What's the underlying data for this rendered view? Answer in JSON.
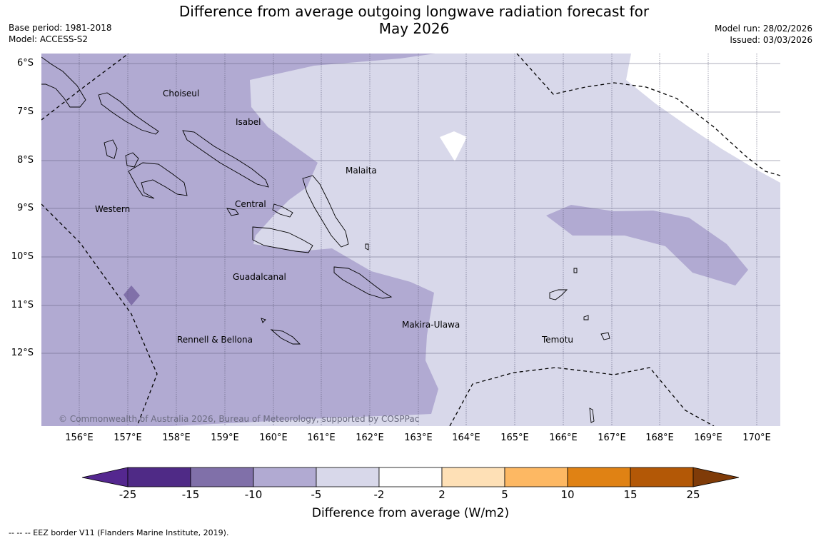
{
  "title_line1": "Difference from average outgoing longwave radiation forecast for",
  "title_line2": "May 2026",
  "base_period": "Base period: 1981-2018",
  "model": "Model: ACCESS-S2",
  "model_run": "Model run: 28/02/2026",
  "issued": "Issued: 03/03/2026",
  "lat_labels": [
    "6°S",
    "7°S",
    "8°S",
    "9°S",
    "10°S",
    "11°S",
    "12°S"
  ],
  "lon_labels": [
    "156°E",
    "157°E",
    "158°E",
    "159°E",
    "160°E",
    "161°E",
    "162°E",
    "163°E",
    "164°E",
    "165°E",
    "166°E",
    "167°E",
    "168°E",
    "169°E",
    "170°E"
  ],
  "regions": {
    "choiseul": "Choiseul",
    "isabel": "Isabel",
    "malaita": "Malaita",
    "western": "Western",
    "central": "Central",
    "guadalcanal": "Guadalcanal",
    "rennell": "Rennell & Bellona",
    "makira": "Makira-Ulawa",
    "temotu": "Temotu"
  },
  "copyright": "© Commonwealth of Australia 2026, Bureau of Meteorology, supported by COSPPac",
  "colorbar": {
    "ticks": [
      "-25",
      "-15",
      "-10",
      "-5",
      "-2",
      "2",
      "5",
      "10",
      "15",
      "25"
    ],
    "colors": [
      "#54278f",
      "#4f2a86",
      "#8070a9",
      "#b1aad2",
      "#d8d8ea",
      "#ffffff",
      "#fee0b6",
      "#fdb863",
      "#e08214",
      "#b35806",
      "#7f3b08"
    ],
    "label": "Difference from average (W/m2)"
  },
  "eez_note": "--  --  -- EEZ border V11 (Flanders Marine Institute, 2019)."
}
